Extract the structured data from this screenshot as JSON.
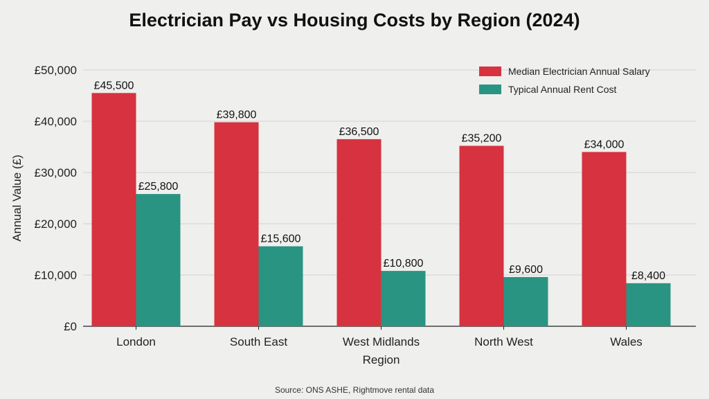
{
  "chart_data": {
    "type": "bar",
    "title": "Electrician Pay vs Housing Costs by Region (2024)",
    "xlabel": "Region",
    "ylabel": "Annual Value (£)",
    "categories": [
      "London",
      "South East",
      "West Midlands",
      "North West",
      "Wales"
    ],
    "series": [
      {
        "name": "Median Electrician Annual Salary",
        "color": "#d7323f",
        "values": [
          45500,
          39800,
          36500,
          35200,
          34000
        ],
        "labels": [
          "£45,500",
          "£39,800",
          "£36,500",
          "£35,200",
          "£34,000"
        ]
      },
      {
        "name": "Typical Annual Rent Cost",
        "color": "#2a9482",
        "values": [
          25800,
          15600,
          10800,
          9600,
          8400
        ],
        "labels": [
          "£25,800",
          "£15,600",
          "£10,800",
          "£9,600",
          "£8,400"
        ]
      }
    ],
    "ylim": [
      0,
      50000
    ],
    "yticks": [
      0,
      10000,
      20000,
      30000,
      40000,
      50000
    ],
    "ytick_labels": [
      "£0",
      "£10,000",
      "£20,000",
      "£30,000",
      "£40,000",
      "£50,000"
    ],
    "grid": true,
    "legend_position": "top-right",
    "source": "Source: ONS ASHE, Rightmove rental data"
  }
}
